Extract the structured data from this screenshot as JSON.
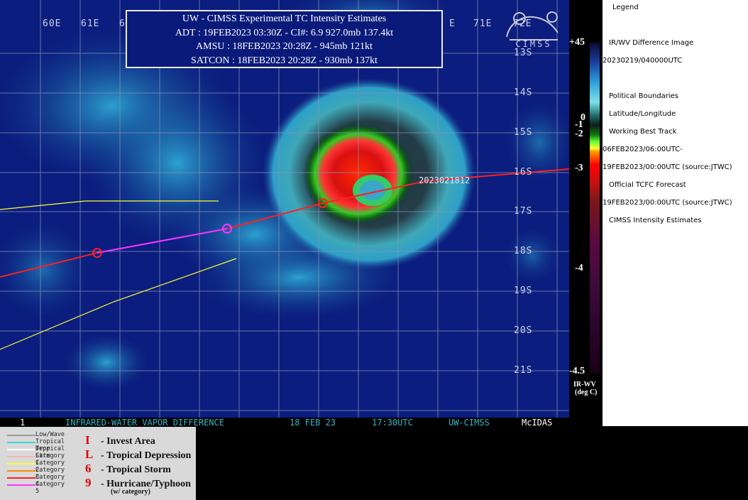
{
  "header": {
    "title": "UW - CIMSS Experimental TC Intensity Estimates",
    "adt": "ADT : 19FEB2023 03:30Z -  CI#: 6.9  927.0mb  137.4kt",
    "amsu": "AMSU : 18FEB2023 20:28Z -  945mb  121kt",
    "satcon": "SATCON : 18FEB2023 20:28Z -  930mb  137kt"
  },
  "map": {
    "lon_labels": [
      "60E",
      "61E",
      "6",
      "E",
      "71E",
      "72E"
    ],
    "lat_labels": [
      "13S",
      "14S",
      "15S",
      "16S",
      "17S",
      "18S",
      "19S",
      "20S",
      "21S"
    ],
    "track_label": "2023021812",
    "logo_text": "CIMSS"
  },
  "status_bar": {
    "frame": "1",
    "product": "INFRARED-WATER VAPOR DIFFERENCE",
    "date": "18 FEB 23",
    "time": "17:30UTC",
    "source": "UW-CIMSS",
    "system": "McIDAS"
  },
  "colorbar": {
    "labels": [
      "+45",
      "0",
      "-1",
      "-2",
      "-3",
      "-4",
      "-4.5"
    ],
    "units": "IR-WV",
    "units2": "(deg C)"
  },
  "legend": {
    "title": "Legend",
    "items": [
      "IR/WV Difference Image",
      "20230219/040000UTC",
      "Political Boundaries",
      "Latitude/Longitude",
      "Working Best Track",
      "06FEB2023/06:00UTC-",
      "19FEB2023/00:00UTC   (source:JTWC)",
      "Official TCFC Forecast",
      "19FEB2023/00:00UTC  (source:JTWC)",
      "CIMSS Intensity Estimates"
    ]
  },
  "key": {
    "lines": [
      {
        "label": "Low/Wave",
        "color": "#9a9a9a"
      },
      {
        "label": "Tropical Depr",
        "color": "#33d6e0"
      },
      {
        "label": "Tropical Strm",
        "color": "#ffffff"
      },
      {
        "label": "Category 1",
        "color": "#ffb3b3"
      },
      {
        "label": "Category 2",
        "color": "#ffff33"
      },
      {
        "label": "Category 3",
        "color": "#ff8c00"
      },
      {
        "label": "Category 4",
        "color": "#ff2020"
      },
      {
        "label": "Category 5",
        "color": "#ff33ff"
      }
    ],
    "symbols": [
      {
        "glyph": "I",
        "label": "- Invest Area"
      },
      {
        "glyph": "L",
        "label": "- Tropical Depression"
      },
      {
        "glyph": "6",
        "label": "- Tropical Storm"
      },
      {
        "glyph": "9",
        "label": "- Hurricane/Typhoon"
      }
    ],
    "note": "(w/ category)"
  }
}
